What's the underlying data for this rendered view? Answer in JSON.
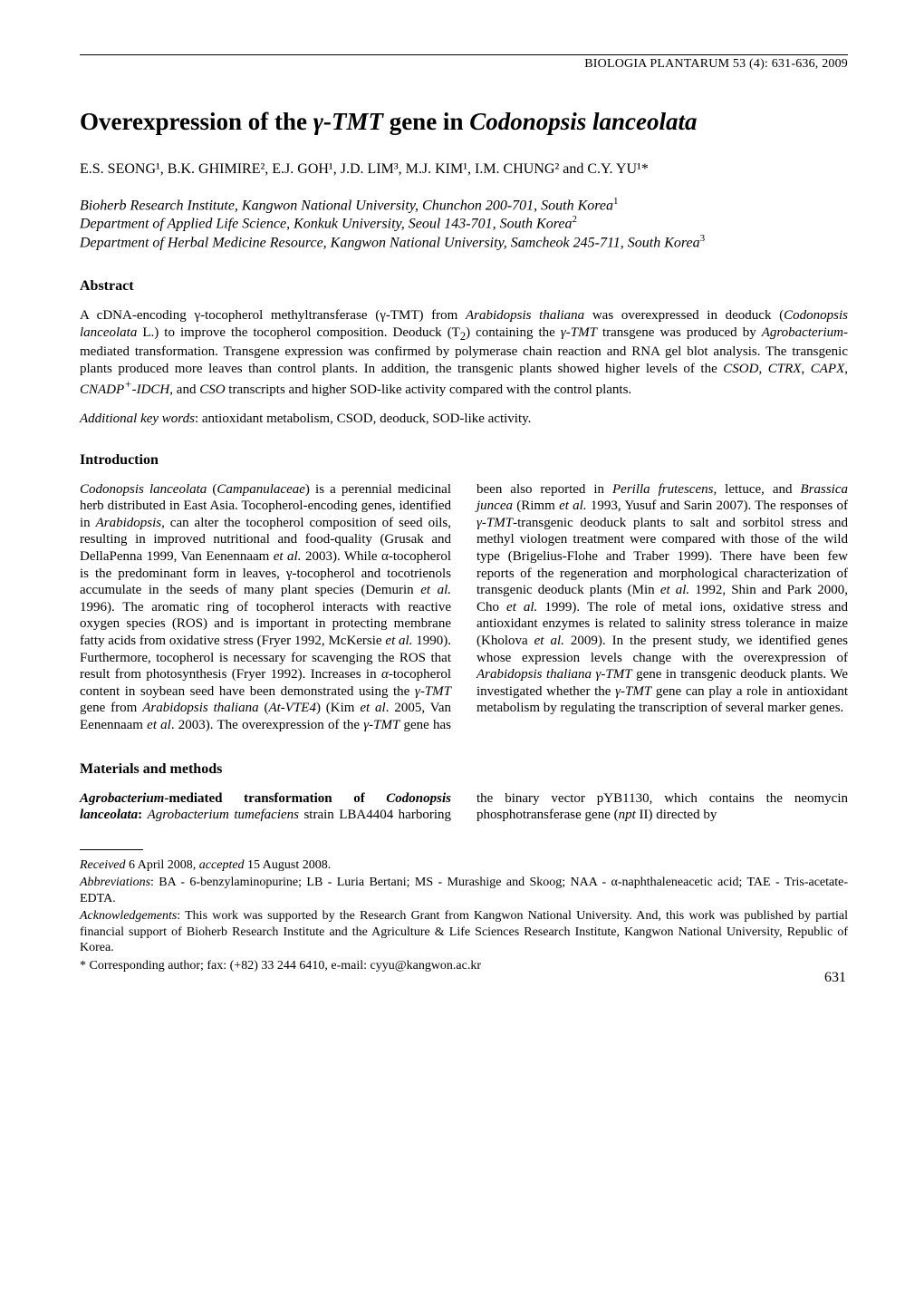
{
  "journal_header": "BIOLOGIA PLANTARUM 53 (4): 631-636, 2009",
  "title_pre": "Overexpression of the ",
  "title_gamma": "γ-TMT",
  "title_mid": " gene in ",
  "title_species": "Codonopsis lanceolata",
  "authors_line": "E.S. SEONG¹, B.K. GHIMIRE², E.J. GOH¹, J.D. LIM³, M.J. KIM¹, I.M. CHUNG² and C.Y. YU¹*",
  "affil1": "Bioherb Research Institute, Kangwon National University, Chunchon 200-701, South Korea",
  "affil2": "Department of Applied Life Science, Konkuk University, Seoul 143-701, South Korea",
  "affil3": "Department of Herbal Medicine Resource, Kangwon National University, Samcheok 245-711, South Korea",
  "abstract_head": "Abstract",
  "abstract_text": "A cDNA-encoding γ-tocopherol methyltransferase (γ-TMT) from Arabidopsis thaliana was overexpressed in deoduck (Codonopsis lanceolata L.) to improve the tocopherol composition. Deoduck (T₂) containing the γ-TMT transgene was produced by Agrobacterium-mediated transformation. Transgene expression was confirmed by polymerase chain reaction and RNA gel blot analysis. The transgenic plants produced more leaves than control plants. In addition, the transgenic plants showed higher levels of the CSOD, CTRX, CAPX, CNADP⁺-IDCH, and CSO transcripts and higher SOD-like activity compared with the control plants.",
  "addkey_lead": "Additional key words",
  "addkey_body": ": antioxidant metabolism, CSOD, deoduck, SOD-like activity.",
  "intro_head": "Introduction",
  "intro_text": "Codonopsis lanceolata (Campanulaceae) is a perennial medicinal herb distributed in East Asia. Tocopherol-encoding genes, identified in Arabidopsis, can alter the tocopherol composition of seed oils, resulting in improved nutritional and food-quality (Grusak and DellaPenna 1999, Van Eenennaam et al. 2003). While α-tocopherol is the predominant form in leaves, γ-tocopherol and tocotrienols accumulate in the seeds of many plant species (Demurin et al. 1996). The aromatic ring of tocopherol interacts with reactive oxygen species (ROS) and is important in protecting membrane fatty acids from oxidative stress (Fryer 1992, McKersie et al. 1990). Furthermore, tocopherol is necessary for scavenging the ROS that result from photosynthesis (Fryer 1992). Increases in α-tocopherol content in soybean seed have been demonstrated using the γ-TMT gene from Arabidopsis thaliana (At-VTE4) (Kim et al. 2005, Van Eenennaam et al. 2003). The overexpression of the γ-TMT gene has been also reported in Perilla frutescens, lettuce, and Brassica juncea (Rimm et al. 1993, Yusuf and Sarin 2007). The responses of γ-TMT-transgenic deoduck plants to salt and sorbitol stress and methyl viologen treatment were compared with those of the wild type (Brigelius-Flohe and Traber 1999). There have been few reports of the regeneration and morphological characterization of transgenic deoduck plants (Min et al. 1992, Shin and Park 2000, Cho et al. 1999). The role of metal ions, oxidative stress and antioxidant enzymes is related to salinity stress tolerance in maize (Kholova et al. 2009). In the present study, we identified genes whose expression levels change with the overexpression of Arabidopsis thaliana γ-TMT gene in transgenic deoduck plants. We investigated whether the γ-TMT gene can play a role in antioxidant metabolism by regulating the transcription of several marker genes.",
  "mm_head": "Materials and methods",
  "mm_text": "Agrobacterium-mediated transformation of Codonopsis lanceolata: Agrobacterium tumefaciens strain LBA4404 harboring the binary vector pYB1130, which contains the neomycin phosphotransferase gene (npt II) directed by",
  "footnotes": {
    "received": "Received 6 April 2008, accepted 15 August 2008.",
    "abbrev_lead": "Abbreviations",
    "abbrev_body": ": BA - 6-benzylaminopurine; LB - Luria Bertani; MS - Murashige and Skoog; NAA - α-naphthaleneacetic acid; TAE - Tris-acetate-EDTA.",
    "ack_lead": "Acknowledgements",
    "ack_body": ": This work was supported by the Research Grant from Kangwon National University. And, this work was published by partial financial support of Bioherb Research Institute and the Agriculture & Life Sciences Research Institute, Kangwon National University, Republic of Korea.",
    "corresp": "* Corresponding author; fax: (+82) 33 244 6410, e-mail: cyyu@kangwon.ac.kr"
  },
  "page_number": "631"
}
